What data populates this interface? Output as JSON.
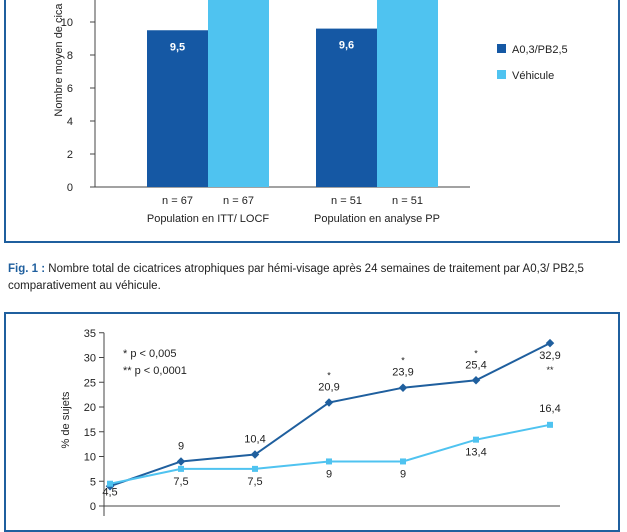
{
  "figure1": {
    "chart_data": {
      "type": "bar",
      "ylabel": "Nombre moyen de cica",
      "ylim": [
        0,
        12
      ],
      "yticks": [
        0,
        2,
        4,
        6,
        8,
        10
      ],
      "groups": [
        "Population en ITT/ LOCF",
        "Population en analyse PP"
      ],
      "series": [
        {
          "name": "A0,3/PB2,5",
          "color": "#1558a4",
          "values": [
            9.5,
            9.6
          ],
          "labels": [
            "9,5",
            "9,6"
          ],
          "n": [
            "n = 67",
            "n = 51"
          ]
        },
        {
          "name": "Véhicule",
          "color": "#4fc3f0",
          "values": [
            12,
            12
          ],
          "n": [
            "n = 67",
            "n = 51"
          ]
        }
      ]
    },
    "caption_prefix": "Fig. 1 :",
    "caption_text": "Nombre total de cicatrices atrophiques par hémi-visage après 24 semaines de traitement par A0,3/ PB2,5 comparativement au véhicule."
  },
  "figure2": {
    "chart_data": {
      "type": "line",
      "ylabel": "% de sujets",
      "ylim": [
        0,
        35
      ],
      "yticks": [
        0,
        5,
        10,
        15,
        20,
        25,
        30,
        35
      ],
      "notes": [
        "* p < 0,005",
        "** p < 0,0001"
      ],
      "series": [
        {
          "name": "dark",
          "color": "#1f5f9e",
          "values": [
            4.0,
            9.0,
            10.4,
            20.9,
            23.9,
            25.4,
            32.9
          ],
          "labels": [
            "",
            "9",
            "10,4",
            "20,9",
            "23,9",
            "25,4",
            "32,9"
          ],
          "marks": [
            "",
            "",
            "",
            "*",
            "*",
            "*",
            "**"
          ]
        },
        {
          "name": "light",
          "color": "#4fc3f0",
          "values": [
            4.5,
            7.5,
            7.5,
            9.0,
            9.0,
            13.4,
            16.4
          ],
          "labels": [
            "4,5",
            "7,5",
            "7,5",
            "9",
            "9",
            "13,4",
            "16,4"
          ]
        }
      ]
    }
  }
}
